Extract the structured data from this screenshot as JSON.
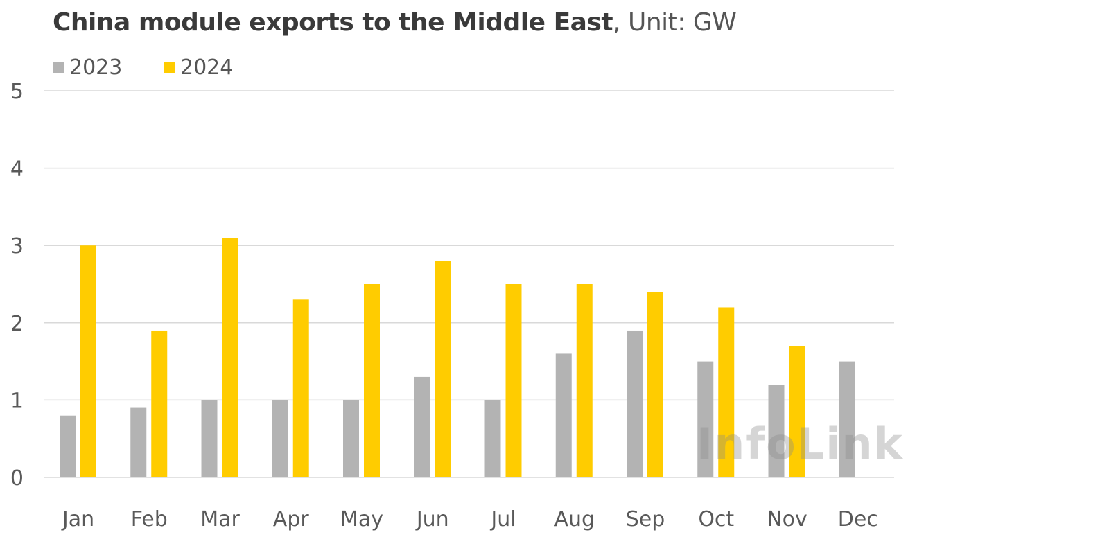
{
  "title": {
    "bold_text": "China module exports to the Middle East",
    "unit_text": ", Unit: GW"
  },
  "watermark": "InfoLink",
  "colors": {
    "series_2023": "#b3b3b3",
    "series_2024": "#ffcc00",
    "gridline": "#d9d9d9",
    "axis_text": "#595959"
  },
  "chart_data": {
    "type": "bar",
    "title": "China module exports to the Middle East, Unit: GW",
    "xlabel": "",
    "ylabel": "",
    "ylim": [
      0,
      5
    ],
    "yticks": [
      0,
      1,
      2,
      3,
      4,
      5
    ],
    "grid": true,
    "legend_position": "top-left",
    "categories": [
      "Jan",
      "Feb",
      "Mar",
      "Apr",
      "May",
      "Jun",
      "Jul",
      "Aug",
      "Sep",
      "Oct",
      "Nov",
      "Dec"
    ],
    "series": [
      {
        "name": "2023",
        "color": "#b3b3b3",
        "values": [
          0.8,
          0.9,
          1.0,
          1.0,
          1.0,
          1.3,
          1.0,
          1.6,
          1.9,
          1.5,
          1.2,
          1.5
        ]
      },
      {
        "name": "2024",
        "color": "#ffcc00",
        "values": [
          3.0,
          1.9,
          3.1,
          2.3,
          2.5,
          2.8,
          2.5,
          2.5,
          2.4,
          2.2,
          1.7,
          null
        ]
      }
    ]
  }
}
